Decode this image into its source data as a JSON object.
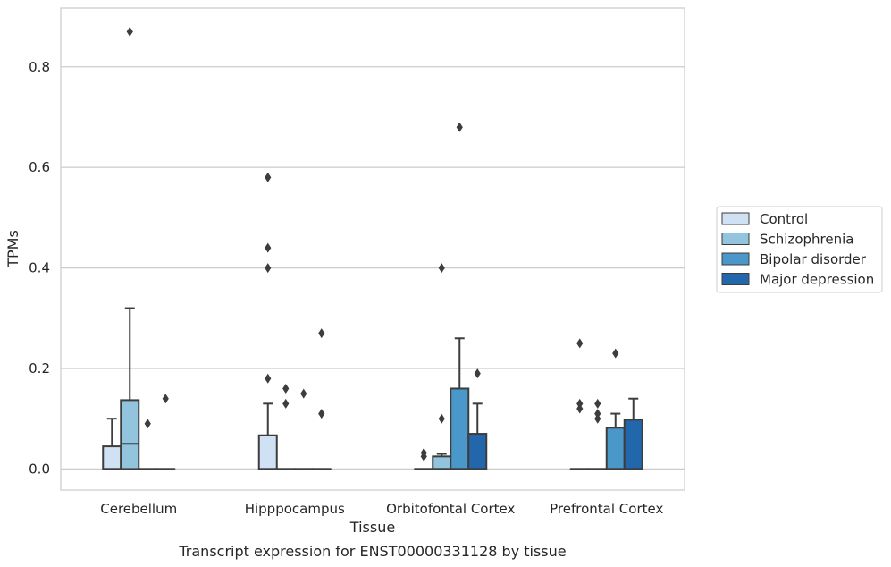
{
  "chart_data": {
    "type": "box",
    "caption": "Transcript expression for ENST00000331128 by tissue",
    "xlabel": "Tissue",
    "ylabel": "TPMs",
    "ylim": [
      -0.042,
      0.917
    ],
    "yticks": [
      0.0,
      0.2,
      0.4,
      0.6,
      0.8
    ],
    "ytick_labels": [
      "0.0",
      "0.2",
      "0.4",
      "0.6",
      "0.8"
    ],
    "grid": "horizontal",
    "legend_position": "right",
    "categories": [
      "Cerebellum",
      "Hipppocampus",
      "Orbitofontal Cortex",
      "Prefrontal Cortex"
    ],
    "series": [
      {
        "name": "Control",
        "color": "#cfe1f2",
        "boxes": [
          {
            "q1": 0.0,
            "median": 0.0,
            "q3": 0.045,
            "whisker_low": 0.0,
            "whisker_high": 0.1,
            "outliers": []
          },
          {
            "q1": 0.0,
            "median": 0.0,
            "q3": 0.067,
            "whisker_low": 0.0,
            "whisker_high": 0.13,
            "outliers": [
              0.18,
              0.4,
              0.44,
              0.58
            ]
          },
          {
            "q1": 0.0,
            "median": 0.0,
            "q3": 0.0,
            "whisker_low": 0.0,
            "whisker_high": 0.0,
            "outliers": [
              0.025,
              0.032
            ]
          },
          {
            "q1": 0.0,
            "median": 0.0,
            "q3": 0.0,
            "whisker_low": 0.0,
            "whisker_high": 0.0,
            "outliers": [
              0.12,
              0.13,
              0.25
            ]
          }
        ]
      },
      {
        "name": "Schizophrenia",
        "color": "#93c4de",
        "boxes": [
          {
            "q1": 0.0,
            "median": 0.05,
            "q3": 0.137,
            "whisker_low": 0.0,
            "whisker_high": 0.32,
            "outliers": [
              0.87
            ]
          },
          {
            "q1": 0.0,
            "median": 0.0,
            "q3": 0.0,
            "whisker_low": 0.0,
            "whisker_high": 0.0,
            "outliers": [
              0.13,
              0.16
            ]
          },
          {
            "q1": 0.0,
            "median": 0.0,
            "q3": 0.025,
            "whisker_low": 0.0,
            "whisker_high": 0.03,
            "outliers": [
              0.1,
              0.4
            ]
          },
          {
            "q1": 0.0,
            "median": 0.0,
            "q3": 0.0,
            "whisker_low": 0.0,
            "whisker_high": 0.0,
            "outliers": [
              0.1,
              0.11,
              0.13
            ]
          }
        ]
      },
      {
        "name": "Bipolar disorder",
        "color": "#4a98c9",
        "boxes": [
          {
            "q1": 0.0,
            "median": 0.0,
            "q3": 0.0,
            "whisker_low": 0.0,
            "whisker_high": 0.0,
            "outliers": [
              0.09
            ]
          },
          {
            "q1": 0.0,
            "median": 0.0,
            "q3": 0.0,
            "whisker_low": 0.0,
            "whisker_high": 0.0,
            "outliers": [
              0.15
            ]
          },
          {
            "q1": 0.0,
            "median": 0.0,
            "q3": 0.16,
            "whisker_low": 0.0,
            "whisker_high": 0.26,
            "outliers": [
              0.68
            ]
          },
          {
            "q1": 0.0,
            "median": 0.0,
            "q3": 0.082,
            "whisker_low": 0.0,
            "whisker_high": 0.11,
            "outliers": [
              0.23
            ]
          }
        ]
      },
      {
        "name": "Major depression",
        "color": "#2266ac",
        "boxes": [
          {
            "q1": 0.0,
            "median": 0.0,
            "q3": 0.0,
            "whisker_low": 0.0,
            "whisker_high": 0.0,
            "outliers": [
              0.14
            ]
          },
          {
            "q1": 0.0,
            "median": 0.0,
            "q3": 0.0,
            "whisker_low": 0.0,
            "whisker_high": 0.0,
            "outliers": [
              0.11,
              0.27
            ]
          },
          {
            "q1": 0.0,
            "median": 0.0,
            "q3": 0.07,
            "whisker_low": 0.0,
            "whisker_high": 0.13,
            "outliers": [
              0.19
            ]
          },
          {
            "q1": 0.0,
            "median": 0.0,
            "q3": 0.098,
            "whisker_low": 0.0,
            "whisker_high": 0.14,
            "outliers": []
          }
        ]
      }
    ]
  }
}
